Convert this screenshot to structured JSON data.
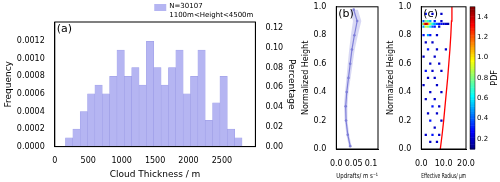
{
  "chart_data": [
    {
      "type": "histogram",
      "annotations": [
        "(a)"
      ],
      "xlabel": "Cloud Thickness / m",
      "ylabel": "Frequency",
      "y2label": "Percentage",
      "bins": [
        160,
        270,
        380,
        490,
        600,
        710,
        820,
        930,
        1040,
        1150,
        1260,
        1370,
        1480,
        1590,
        1700,
        1810,
        1920,
        2030,
        2140,
        2250,
        2360,
        2470,
        2580,
        2690,
        2800
      ],
      "series": [
        {
          "name": "N=30107\n1100m<Height<4500m",
          "color": "#b5b5f2",
          "values": [
            0.0001,
            0.0002,
            0.0004,
            0.0006,
            0.0007,
            0.0006,
            0.0008,
            0.0011,
            0.0008,
            0.0009,
            0.0007,
            0.0012,
            0.0009,
            0.0007,
            0.0009,
            0.0011,
            0.0006,
            0.0008,
            0.0011,
            0.0003,
            0.0005,
            0.0008,
            0.0002,
            0.0001
          ]
        }
      ],
      "xlim": [
        0,
        3000
      ],
      "xticks": [
        0,
        500,
        1000,
        1500,
        2000,
        2500
      ],
      "ylim": [
        0,
        0.00142
      ],
      "yticks": [
        {
          "value": 0,
          "label": "0.0000"
        },
        {
          "value": 0.0002,
          "label": "0.0002"
        },
        {
          "value": 0.0004,
          "label": "0.0004"
        },
        {
          "value": 0.0006,
          "label": "0.0006"
        },
        {
          "value": 0.0008,
          "label": "0.0008"
        },
        {
          "value": 0.001,
          "label": "0.0010"
        },
        {
          "value": 0.0012,
          "label": "0.0012"
        }
      ],
      "y2lim": [
        0,
        0.126
      ],
      "y2ticks": [
        {
          "value": 0,
          "label": "0.00"
        },
        {
          "value": 0.02,
          "label": "0.02"
        },
        {
          "value": 0.04,
          "label": "0.04"
        },
        {
          "value": 0.06,
          "label": "0.06"
        },
        {
          "value": 0.08,
          "label": "0.08"
        },
        {
          "value": 0.1,
          "label": "0.10"
        },
        {
          "value": 0.12,
          "label": "0.12"
        }
      ],
      "legend": "upper right",
      "grid": false
    },
    {
      "type": "line",
      "annotations": [
        "(b)"
      ],
      "xlabel": "Updrafts/ m s⁻¹",
      "ylabel": "Normalized Height",
      "y": [
        0.02,
        0.1,
        0.2,
        0.3,
        0.4,
        0.5,
        0.6,
        0.7,
        0.8,
        0.9,
        0.98
      ],
      "series": [
        {
          "color": "#7f7fd9",
          "marker": "circle",
          "values": [
            0.04,
            0.033,
            0.028,
            0.027,
            0.03,
            0.035,
            0.04,
            0.045,
            0.052,
            0.06,
            0.05
          ],
          "error": [
            0.004,
            0.004,
            0.004,
            0.005,
            0.005,
            0.006,
            0.007,
            0.008,
            0.01,
            0.012,
            0.012
          ]
        }
      ],
      "xlim": [
        0,
        0.12
      ],
      "xticks": [
        {
          "value": 0,
          "label": "0.0"
        },
        0.05,
        0.1
      ],
      "ylim": [
        0,
        1
      ],
      "yticks": [
        {
          "value": 0,
          "label": "0.0"
        },
        0.2,
        0.4,
        0.6,
        0.8,
        {
          "value": 1,
          "label": "1.0"
        }
      ],
      "grid": false
    },
    {
      "type": "scatter",
      "annotations": [
        "(c)"
      ],
      "xlabel": "Effective Radius/ μm",
      "ylabel": "Normalized Height",
      "series": [
        {
          "type": "scatter",
          "marker": "square",
          "x": [
            0.5,
            1,
            1.5,
            2,
            2.5,
            3,
            3.5,
            4,
            4.5,
            5,
            5.5,
            6,
            7,
            8,
            9,
            10,
            11,
            12,
            1,
            2,
            3,
            4,
            5,
            6,
            8,
            1,
            2,
            3,
            4,
            6,
            9,
            2,
            5,
            9,
            1,
            3,
            4,
            7,
            2,
            5,
            3,
            7,
            11,
            1,
            6,
            4,
            8,
            2,
            5,
            9,
            3,
            6,
            1,
            7,
            4,
            9,
            2,
            6,
            5,
            8,
            3,
            7,
            4,
            9,
            6,
            2,
            5,
            8,
            4,
            7
          ],
          "y": [
            0.88,
            0.88,
            0.88,
            0.88,
            0.88,
            0.88,
            0.88,
            0.88,
            0.88,
            0.88,
            0.88,
            0.88,
            0.88,
            0.88,
            0.88,
            0.88,
            0.88,
            0.88,
            0.86,
            0.86,
            0.86,
            0.86,
            0.86,
            0.86,
            0.86,
            0.9,
            0.9,
            0.9,
            0.9,
            0.9,
            0.9,
            0.95,
            0.95,
            0.95,
            0.8,
            0.8,
            0.8,
            0.8,
            0.75,
            0.75,
            0.7,
            0.7,
            0.7,
            0.65,
            0.65,
            0.6,
            0.6,
            0.55,
            0.55,
            0.55,
            0.5,
            0.5,
            0.45,
            0.45,
            0.4,
            0.4,
            0.35,
            0.35,
            0.3,
            0.3,
            0.25,
            0.25,
            0.2,
            0.2,
            0.15,
            0.1,
            0.1,
            0.1,
            0.05,
            0.05
          ],
          "pdf": [
            0.6,
            0.9,
            1.2,
            1.4,
            1.4,
            1.3,
            1.1,
            0.9,
            0.8,
            0.7,
            0.6,
            0.5,
            0.4,
            0.3,
            0.3,
            0.2,
            0.2,
            0.15,
            0.5,
            0.9,
            0.8,
            0.6,
            0.4,
            0.3,
            0.2,
            0.4,
            0.8,
            0.7,
            0.5,
            0.3,
            0.2,
            0.3,
            0.2,
            0.2,
            0.3,
            0.5,
            0.3,
            0.2,
            0.2,
            0.2,
            0.3,
            0.2,
            0.2,
            0.2,
            0.2,
            0.2,
            0.2,
            0.3,
            0.2,
            0.2,
            0.2,
            0.2,
            0.2,
            0.2,
            0.2,
            0.2,
            0.2,
            0.2,
            0.3,
            0.2,
            0.2,
            0.2,
            0.3,
            0.2,
            0.2,
            0.2,
            0.3,
            0.2,
            0.2,
            0.2
          ]
        },
        {
          "type": "line",
          "color": "#ff0000",
          "x": [
            8.5,
            9.3,
            10,
            10.6,
            11.2,
            11.8,
            12.3,
            12.8,
            13.2,
            13.5,
            13.7
          ],
          "y": [
            0,
            0.1,
            0.2,
            0.3,
            0.4,
            0.5,
            0.6,
            0.7,
            0.8,
            0.9,
            1.0
          ]
        }
      ],
      "xlim": [
        0,
        20
      ],
      "xticks": [
        {
          "value": 0,
          "label": "0.0"
        },
        {
          "value": 10,
          "label": "10.0"
        },
        {
          "value": 20,
          "label": "20.0"
        }
      ],
      "ylim": [
        0,
        1
      ],
      "yticks": [
        {
          "value": 0,
          "label": "0.0"
        },
        0.2,
        0.4,
        0.6,
        0.8,
        {
          "value": 1,
          "label": "1.0"
        }
      ],
      "colorbar": {
        "label": "PDF",
        "range": [
          0.1,
          1.5
        ],
        "ticks": [
          0.2,
          0.4,
          0.6,
          0.8,
          {
            "value": 1,
            "label": "1.0"
          },
          1.2,
          1.4
        ]
      },
      "grid": false
    }
  ]
}
